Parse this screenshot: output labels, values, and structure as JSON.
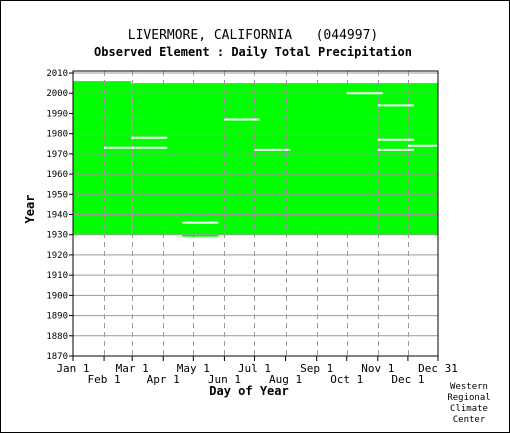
{
  "chart_data": {
    "type": "scatter",
    "title": "LIVERMORE, CALIFORNIA   (044997)",
    "subtitle": "Observed Element : Daily Total Precipitation",
    "xlabel": "Day of Year",
    "ylabel": "Year",
    "xlim": [
      1,
      365
    ],
    "ylim": [
      1870,
      2011
    ],
    "yticks": [
      1870,
      1880,
      1890,
      1900,
      1910,
      1920,
      1930,
      1940,
      1950,
      1960,
      1970,
      1980,
      1990,
      2000,
      2010
    ],
    "month_ticks_upper": [
      {
        "label": "Jan 1",
        "day": 1
      },
      {
        "label": "Mar 1",
        "day": 60
      },
      {
        "label": "May 1",
        "day": 121
      },
      {
        "label": "Jul 1",
        "day": 182
      },
      {
        "label": "Sep 1",
        "day": 244
      },
      {
        "label": "Nov 1",
        "day": 305
      },
      {
        "label": "Dec 31",
        "day": 365
      }
    ],
    "month_ticks_lower": [
      {
        "label": "Feb 1",
        "day": 32
      },
      {
        "label": "Apr 1",
        "day": 91
      },
      {
        "label": "Jun 1",
        "day": 152
      },
      {
        "label": "Aug 1",
        "day": 213
      },
      {
        "label": "Oct 1",
        "day": 274
      },
      {
        "label": "Dec 1",
        "day": 335
      }
    ],
    "grid": true,
    "data_color": "#00ff00",
    "data_coverage": [
      {
        "day_start": 1,
        "day_end": 59,
        "year_start": 1930,
        "year_end": 2006
      },
      {
        "day_start": 59,
        "day_end": 365,
        "year_start": 1930,
        "year_end": 2005
      },
      {
        "day_start": 110,
        "day_end": 146,
        "year_start": 1929,
        "year_end": 1930
      }
    ],
    "missing_segments": [
      {
        "day_start": 32,
        "day_end": 59,
        "year": 1973
      },
      {
        "day_start": 59,
        "day_end": 95,
        "year": 1973
      },
      {
        "day_start": 59,
        "day_end": 95,
        "year": 1978
      },
      {
        "day_start": 110,
        "day_end": 146,
        "year": 1936
      },
      {
        "day_start": 182,
        "day_end": 218,
        "year": 1972
      },
      {
        "day_start": 152,
        "day_end": 187,
        "year": 1987
      },
      {
        "day_start": 274,
        "day_end": 310,
        "year": 2000
      },
      {
        "day_start": 305,
        "day_end": 341,
        "year": 1994
      },
      {
        "day_start": 305,
        "day_end": 341,
        "year": 1977
      },
      {
        "day_start": 305,
        "day_end": 341,
        "year": 1972
      },
      {
        "day_start": 335,
        "day_end": 365,
        "year": 1974
      }
    ]
  },
  "logo": {
    "line1": "Western",
    "line2": "Regional",
    "line3": "Climate",
    "line4": "Center"
  }
}
